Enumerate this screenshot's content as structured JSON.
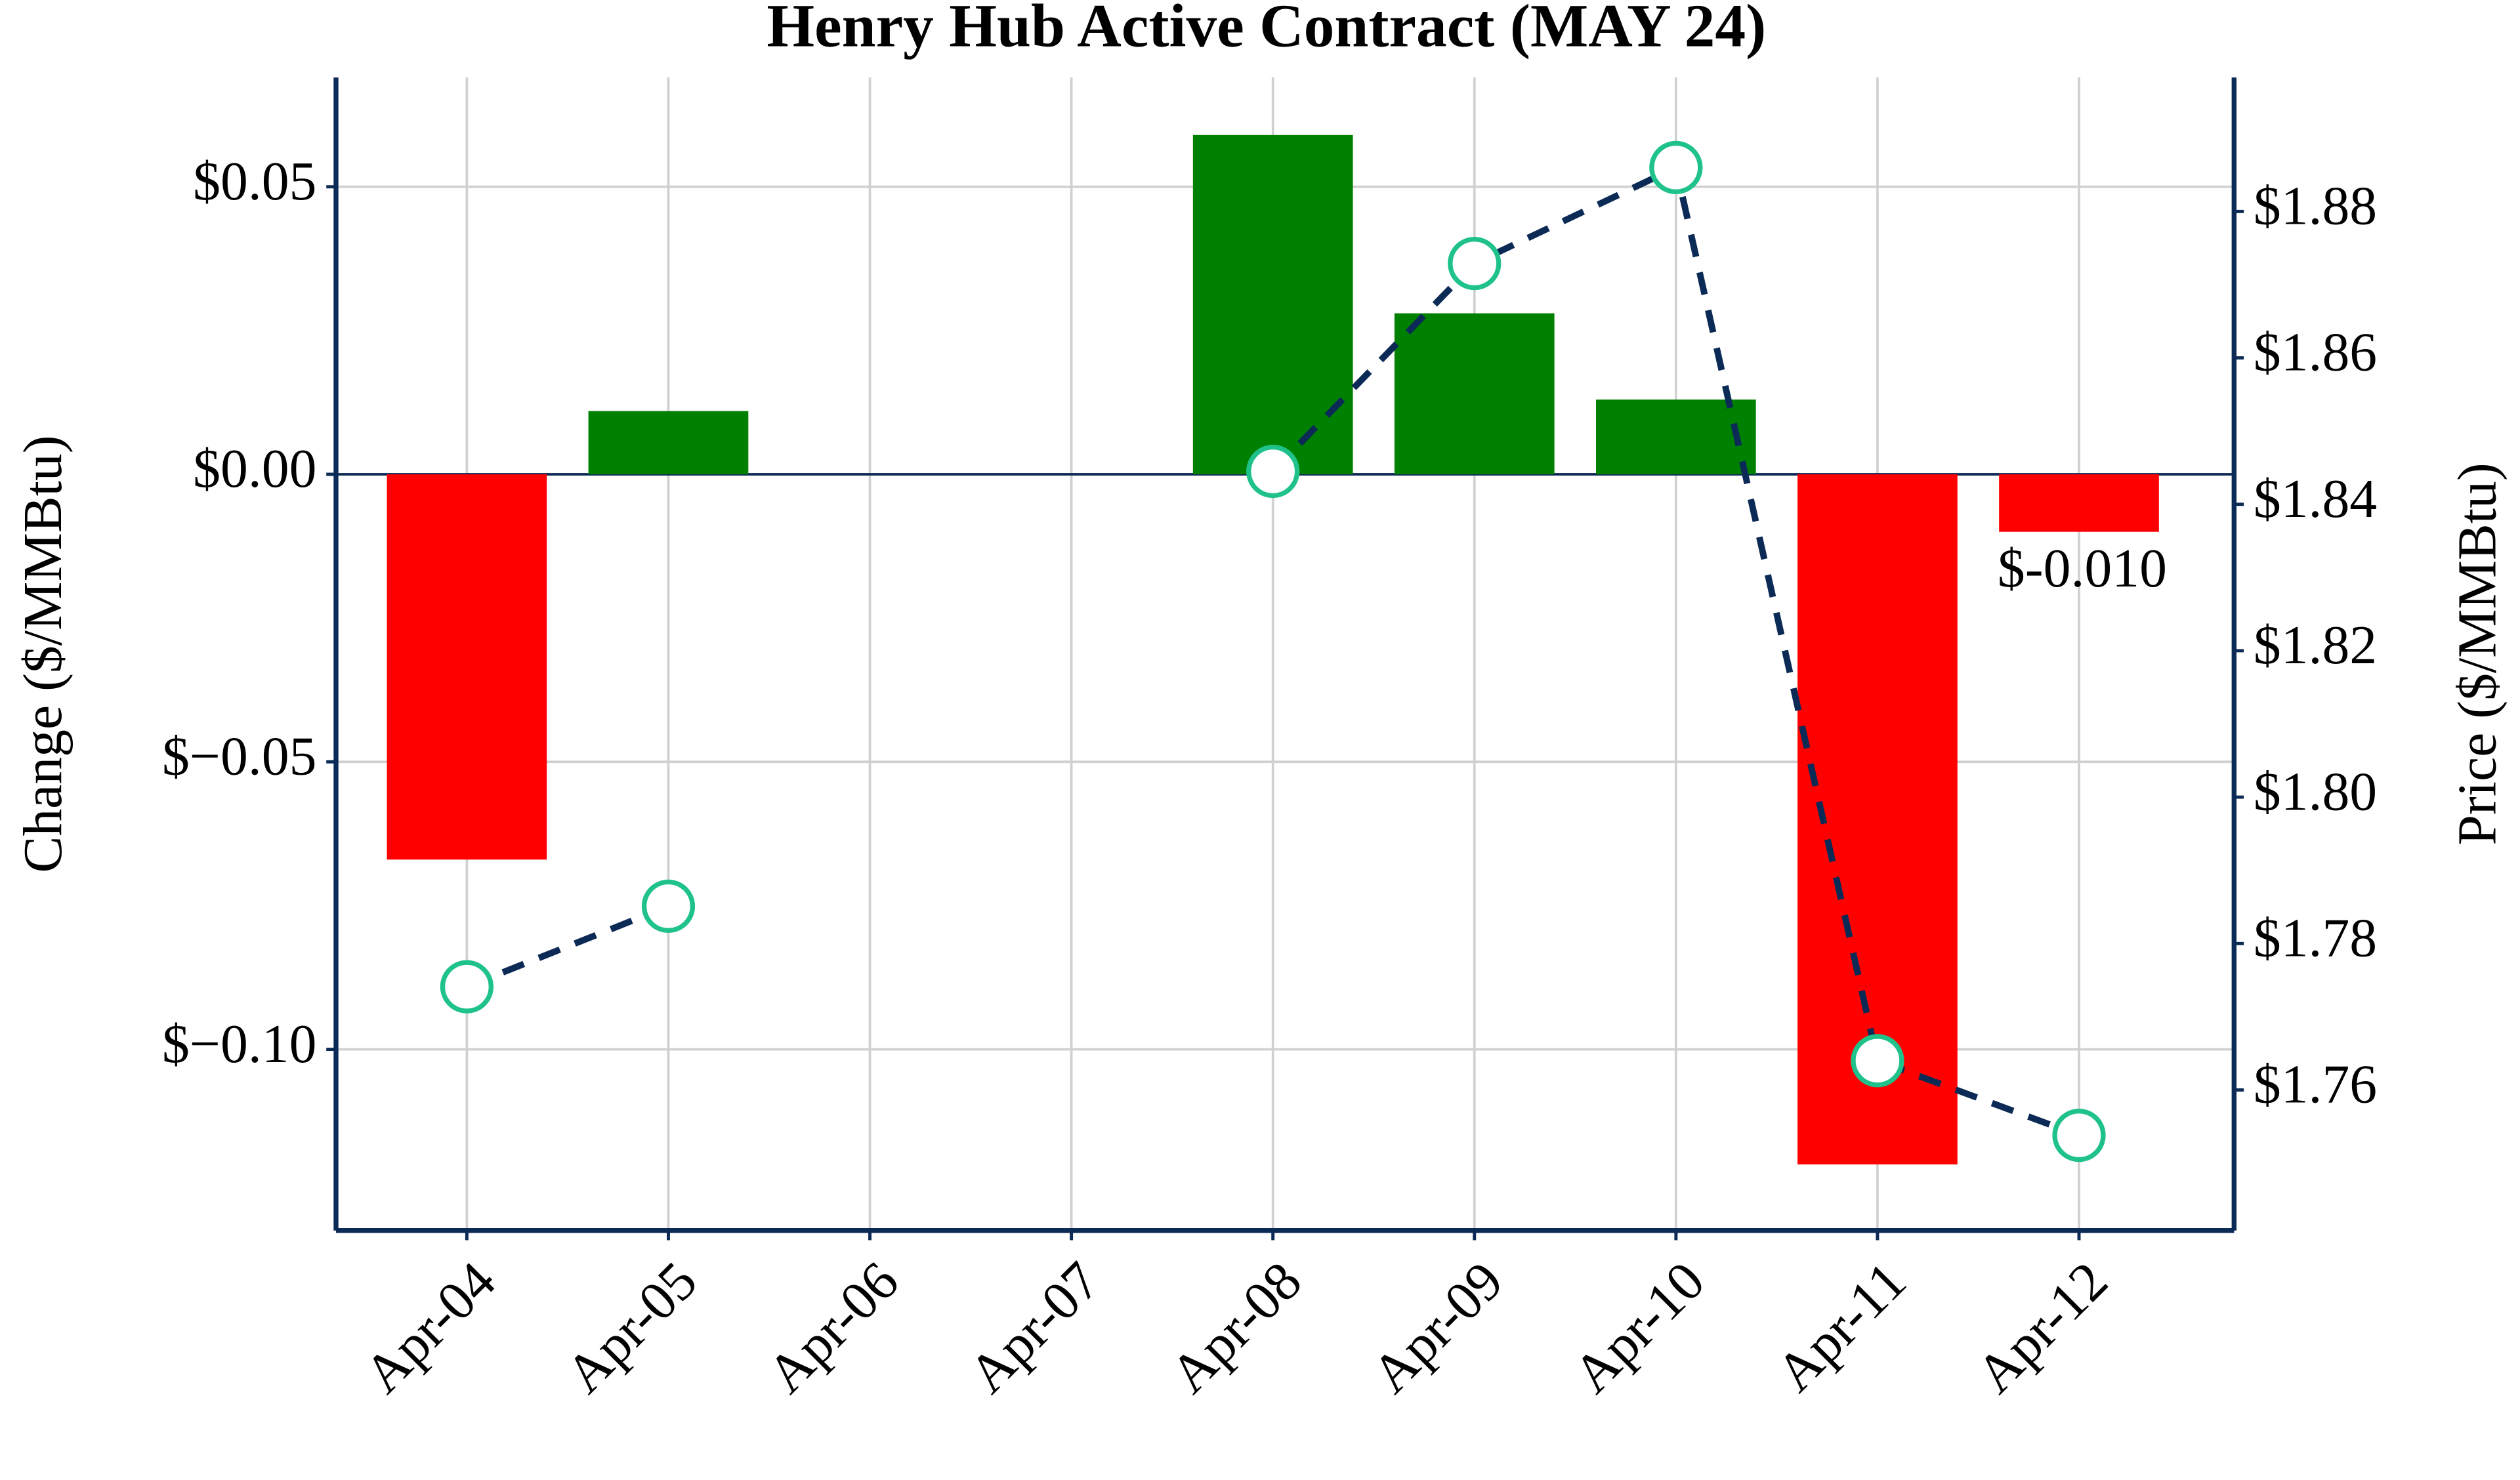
{
  "chart_data": {
    "type": "bar",
    "title": "Henry Hub Active Contract (MAY 24)",
    "ylabel": "Change ($/MMBtu)",
    "y2label": "Price ($/MMBtu)",
    "categories": [
      "Apr-04",
      "Apr-05",
      "Apr-06",
      "Apr-07",
      "Apr-08",
      "Apr-09",
      "Apr-10",
      "Apr-11",
      "Apr-12"
    ],
    "series": [
      {
        "type": "bar",
        "values": [
          -0.067,
          0.011,
          null,
          null,
          0.059,
          0.028,
          0.013,
          -0.12,
          -0.01
        ],
        "value_labels": [
          null,
          null,
          null,
          null,
          null,
          null,
          null,
          null,
          "$-0.010"
        ],
        "positive_color": "#008000",
        "negative_color": "#ff0000"
      },
      {
        "type": "line",
        "axis": "y2",
        "values": [
          1.7741,
          1.7851,
          null,
          null,
          1.8445,
          1.8729,
          1.886,
          1.764,
          1.7538
        ],
        "color": "#0b2a55",
        "marker_color": "#1fc28a",
        "dashed": true
      }
    ],
    "ylim": [
      -0.1315,
      0.069
    ],
    "yticks": [
      {
        "value": -0.1,
        "label": "$−0.10"
      },
      {
        "value": -0.05,
        "label": "$−0.05"
      },
      {
        "value": 0,
        "label": "$0.00"
      },
      {
        "value": 0.05,
        "label": "$0.05"
      }
    ],
    "y2lim": [
      1.7408,
      1.8983
    ],
    "y2ticks": [
      {
        "value": 1.76,
        "label": "$1.76"
      },
      {
        "value": 1.78,
        "label": "$1.78"
      },
      {
        "value": 1.8,
        "label": "$1.80"
      },
      {
        "value": 1.82,
        "label": "$1.82"
      },
      {
        "value": 1.84,
        "label": "$1.84"
      },
      {
        "value": 1.86,
        "label": "$1.86"
      },
      {
        "value": 1.88,
        "label": "$1.88"
      }
    ],
    "grid": true
  }
}
